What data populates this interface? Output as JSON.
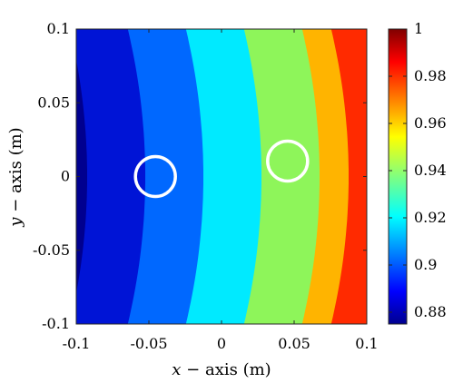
{
  "chart_data": {
    "type": "heatmap",
    "xlabel_var": "x",
    "xlabel_rest": " − axis (m)",
    "ylabel_var": "y",
    "ylabel_rest": " − axis (m)",
    "xlim": [
      -0.1,
      0.1
    ],
    "ylim": [
      -0.1,
      0.1
    ],
    "xticks": [
      -0.1,
      -0.05,
      0,
      0.05,
      0.1
    ],
    "xtick_labels": [
      "-0.1",
      "-0.05",
      "0",
      "0.05",
      "0.1"
    ],
    "yticks": [
      0.1,
      0.05,
      0,
      -0.05,
      -0.1
    ],
    "ytick_labels": [
      "0.1",
      "0.05",
      "0",
      "-0.05",
      "-0.1"
    ],
    "colorbar": {
      "colormap": "jet",
      "range": [
        0.875,
        1.0
      ],
      "ticks": [
        1,
        0.98,
        0.96,
        0.94,
        0.92,
        0.9,
        0.88
      ],
      "tick_labels": [
        "1",
        "0.98",
        "0.96",
        "0.94",
        "0.92",
        "0.9",
        "0.88"
      ]
    },
    "contour_bands": [
      {
        "level": 0.875,
        "color": "#00008f",
        "x_boundary_at_y0": -0.1
      },
      {
        "level": 0.8875,
        "color": "#0014d6",
        "x_boundary_at_y0": -0.0925
      },
      {
        "level": 0.9,
        "color": "#0068ff",
        "x_boundary_at_y0": -0.0525
      },
      {
        "level": 0.9125,
        "color": "#00eaff",
        "x_boundary_at_y0": -0.0125
      },
      {
        "level": 0.925,
        "color": "#8ef55a",
        "x_boundary_at_y0": 0.0275
      },
      {
        "level": 0.9375,
        "color": "#ffb400",
        "x_boundary_at_y0": 0.0675
      },
      {
        "level": 0.95,
        "color": "#ff2a00",
        "x_boundary_at_y0": 0.0875
      }
    ],
    "band_curvature": 0.012,
    "circles": [
      {
        "cx": -0.0455,
        "cy": 0.0,
        "r": 0.0095,
        "color": "#ffffff"
      },
      {
        "cx": 0.0455,
        "cy": 0.0105,
        "r": 0.0095,
        "color": "#ffffff"
      }
    ]
  }
}
